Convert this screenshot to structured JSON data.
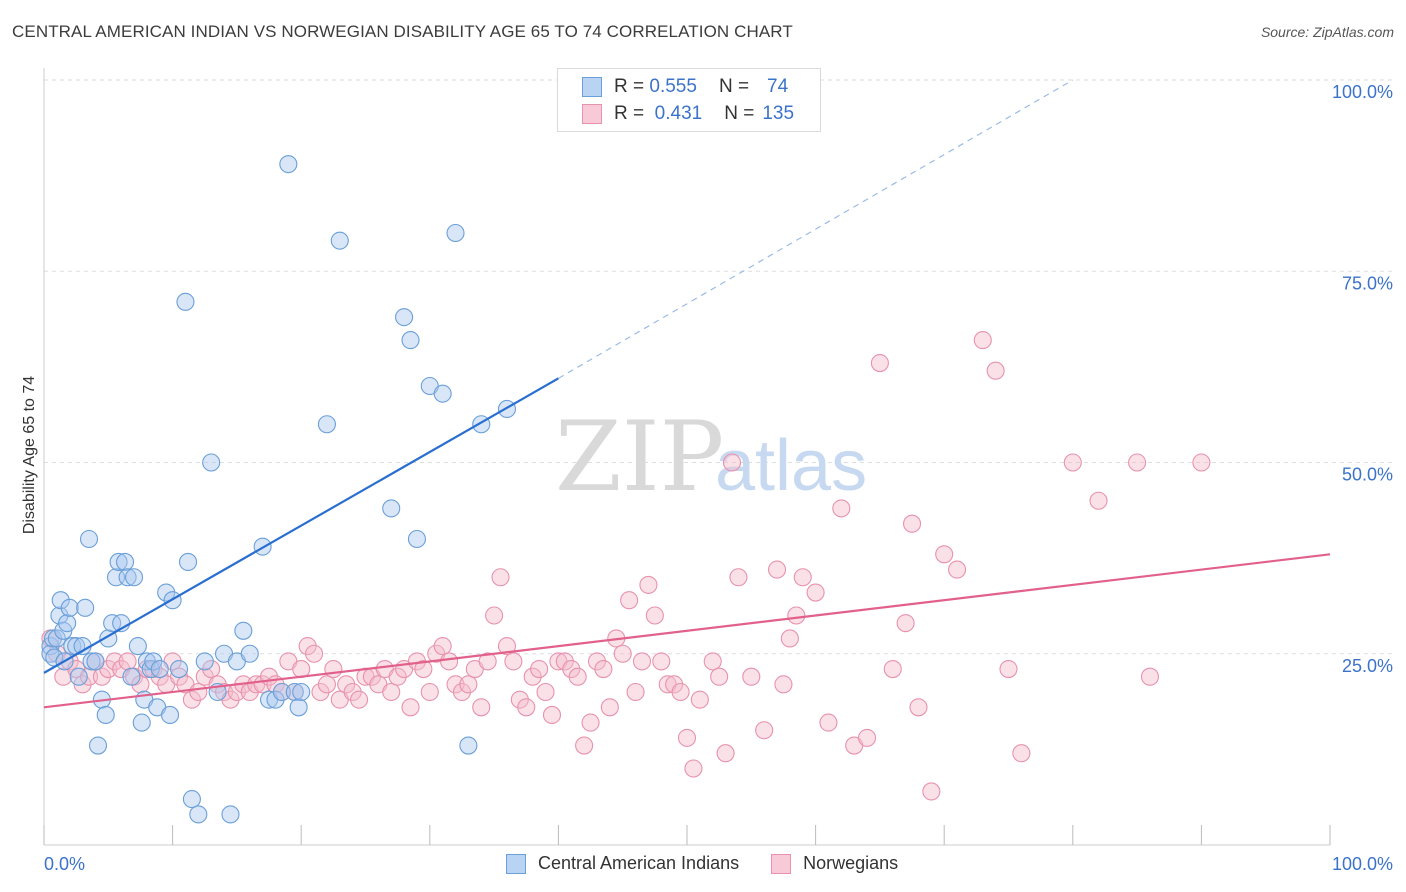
{
  "title": "CENTRAL AMERICAN INDIAN VS NORWEGIAN DISABILITY AGE 65 TO 74 CORRELATION CHART",
  "source": "Source: ZipAtlas.com",
  "watermark": {
    "zip": "ZIP",
    "atlas": "atlas"
  },
  "legend": {
    "rows": [
      {
        "r_label": "R =",
        "r_value": "0.555",
        "n_label": "N =",
        "n_value": "74"
      },
      {
        "r_label": "R =",
        "r_value": "0.431",
        "n_label": "N =",
        "n_value": "135"
      }
    ]
  },
  "bottom_legend": [
    "Central American Indians",
    "Norwegians"
  ],
  "colors": {
    "blue_fill": "#a9c8f0",
    "blue_stroke": "#6a9fd8",
    "blue_line": "#2a6fd0",
    "pink_fill": "#f5bccd",
    "pink_stroke": "#e892ad",
    "pink_line": "#e2608c",
    "axis_text": "#3b73c9",
    "grid": "#dddddd"
  },
  "chart_data": {
    "type": "scatter",
    "title": "CENTRAL AMERICAN INDIAN VS NORWEGIAN DISABILITY AGE 65 TO 74 CORRELATION CHART",
    "xlabel": "",
    "ylabel": "Disability Age 65 to 74",
    "xlim": [
      0,
      100
    ],
    "ylim": [
      0,
      100
    ],
    "x_ticks": [
      "0.0%",
      "100.0%"
    ],
    "y_ticks": [
      "25.0%",
      "50.0%",
      "75.0%",
      "100.0%"
    ],
    "grid": true,
    "legend_position": "top-center",
    "series": [
      {
        "name": "Central American Indians",
        "r": 0.555,
        "n": 74,
        "trend": {
          "x0": 0,
          "y0": 22.5,
          "x1": 40,
          "y1": 61,
          "dash_to_x": 80,
          "dash_to_y": 100
        },
        "points": [
          [
            0.5,
            26
          ],
          [
            0.5,
            25
          ],
          [
            0.7,
            27
          ],
          [
            0.8,
            24.5
          ],
          [
            1,
            27
          ],
          [
            1.2,
            30
          ],
          [
            1.3,
            32
          ],
          [
            1.5,
            28
          ],
          [
            1.6,
            24
          ],
          [
            1.8,
            29
          ],
          [
            2,
            31
          ],
          [
            2.2,
            26
          ],
          [
            2.5,
            26
          ],
          [
            2.7,
            22
          ],
          [
            3,
            26
          ],
          [
            3.2,
            31
          ],
          [
            3.5,
            40
          ],
          [
            3.7,
            24
          ],
          [
            4,
            24
          ],
          [
            4.2,
            13
          ],
          [
            4.5,
            19
          ],
          [
            4.8,
            17
          ],
          [
            5,
            27
          ],
          [
            5.3,
            29
          ],
          [
            5.6,
            35
          ],
          [
            5.8,
            37
          ],
          [
            6,
            29
          ],
          [
            6.3,
            37
          ],
          [
            6.5,
            35
          ],
          [
            6.8,
            22
          ],
          [
            7,
            35
          ],
          [
            7.3,
            26
          ],
          [
            7.6,
            16
          ],
          [
            7.8,
            19
          ],
          [
            8,
            24
          ],
          [
            8.3,
            23
          ],
          [
            8.5,
            24
          ],
          [
            8.8,
            18
          ],
          [
            9,
            23
          ],
          [
            9.5,
            33
          ],
          [
            9.8,
            17
          ],
          [
            10,
            32
          ],
          [
            10.5,
            23
          ],
          [
            11,
            71
          ],
          [
            11.2,
            37
          ],
          [
            11.5,
            6
          ],
          [
            12,
            4
          ],
          [
            12.5,
            24
          ],
          [
            13,
            50
          ],
          [
            13.5,
            20
          ],
          [
            14,
            25
          ],
          [
            14.5,
            4
          ],
          [
            15,
            24
          ],
          [
            15.5,
            28
          ],
          [
            16,
            25
          ],
          [
            17,
            39
          ],
          [
            17.5,
            19
          ],
          [
            18,
            19
          ],
          [
            18.5,
            20
          ],
          [
            19,
            89
          ],
          [
            19.5,
            20
          ],
          [
            19.8,
            18
          ],
          [
            20,
            20
          ],
          [
            22,
            55
          ],
          [
            23,
            79
          ],
          [
            27,
            44
          ],
          [
            28,
            69
          ],
          [
            28.5,
            66
          ],
          [
            29,
            40
          ],
          [
            30,
            60
          ],
          [
            31,
            59
          ],
          [
            32,
            80
          ],
          [
            33,
            13
          ],
          [
            34,
            55
          ],
          [
            36,
            57
          ]
        ]
      },
      {
        "name": "Norwegians",
        "r": 0.431,
        "n": 135,
        "trend": {
          "x0": 0,
          "y0": 18,
          "x1": 100,
          "y1": 38
        },
        "points": [
          [
            0.5,
            27
          ],
          [
            1,
            25
          ],
          [
            1.5,
            22
          ],
          [
            2,
            24
          ],
          [
            2.5,
            23
          ],
          [
            3,
            21
          ],
          [
            3.5,
            22
          ],
          [
            4,
            24
          ],
          [
            4.5,
            22
          ],
          [
            5,
            23
          ],
          [
            5.5,
            24
          ],
          [
            6,
            23
          ],
          [
            6.5,
            24
          ],
          [
            7,
            22
          ],
          [
            7.5,
            21
          ],
          [
            8,
            23
          ],
          [
            8.5,
            23
          ],
          [
            9,
            22
          ],
          [
            9.5,
            21
          ],
          [
            10,
            24
          ],
          [
            10.5,
            22
          ],
          [
            11,
            21
          ],
          [
            11.5,
            19
          ],
          [
            12,
            20
          ],
          [
            12.5,
            22
          ],
          [
            13,
            23
          ],
          [
            13.5,
            21
          ],
          [
            14,
            20
          ],
          [
            14.5,
            19
          ],
          [
            15,
            20
          ],
          [
            15.5,
            21
          ],
          [
            16,
            20
          ],
          [
            16.5,
            21
          ],
          [
            17,
            21
          ],
          [
            17.5,
            22
          ],
          [
            18,
            21
          ],
          [
            18.5,
            20
          ],
          [
            19,
            24
          ],
          [
            19.5,
            20
          ],
          [
            20,
            23
          ],
          [
            20.5,
            26
          ],
          [
            21,
            25
          ],
          [
            21.5,
            20
          ],
          [
            22,
            21
          ],
          [
            22.5,
            23
          ],
          [
            23,
            19
          ],
          [
            23.5,
            21
          ],
          [
            24,
            20
          ],
          [
            24.5,
            19
          ],
          [
            25,
            22
          ],
          [
            25.5,
            22
          ],
          [
            26,
            21
          ],
          [
            26.5,
            23
          ],
          [
            27,
            20
          ],
          [
            27.5,
            22
          ],
          [
            28,
            23
          ],
          [
            28.5,
            18
          ],
          [
            29,
            24
          ],
          [
            29.5,
            23
          ],
          [
            30,
            20
          ],
          [
            30.5,
            25
          ],
          [
            31,
            26
          ],
          [
            31.5,
            24
          ],
          [
            32,
            21
          ],
          [
            32.5,
            20
          ],
          [
            33,
            21
          ],
          [
            33.5,
            23
          ],
          [
            34,
            18
          ],
          [
            34.5,
            24
          ],
          [
            35,
            30
          ],
          [
            35.5,
            35
          ],
          [
            36,
            26
          ],
          [
            36.5,
            24
          ],
          [
            37,
            19
          ],
          [
            37.5,
            18
          ],
          [
            38,
            22
          ],
          [
            38.5,
            23
          ],
          [
            39,
            20
          ],
          [
            39.5,
            17
          ],
          [
            40,
            24
          ],
          [
            40.5,
            24
          ],
          [
            41,
            23
          ],
          [
            41.5,
            22
          ],
          [
            42,
            13
          ],
          [
            42.5,
            16
          ],
          [
            43,
            24
          ],
          [
            43.5,
            23
          ],
          [
            44,
            18
          ],
          [
            44.5,
            27
          ],
          [
            45,
            25
          ],
          [
            45.5,
            32
          ],
          [
            46,
            20
          ],
          [
            46.5,
            24
          ],
          [
            47,
            34
          ],
          [
            47.5,
            30
          ],
          [
            48,
            24
          ],
          [
            48.5,
            21
          ],
          [
            49,
            21
          ],
          [
            49.5,
            20
          ],
          [
            50,
            14
          ],
          [
            50.5,
            10
          ],
          [
            51,
            19
          ],
          [
            52,
            24
          ],
          [
            52.5,
            22
          ],
          [
            53,
            12
          ],
          [
            53.5,
            50
          ],
          [
            54,
            35
          ],
          [
            55,
            22
          ],
          [
            56,
            15
          ],
          [
            57,
            36
          ],
          [
            57.5,
            21
          ],
          [
            58,
            27
          ],
          [
            58.5,
            30
          ],
          [
            59,
            35
          ],
          [
            60,
            33
          ],
          [
            61,
            16
          ],
          [
            62,
            44
          ],
          [
            63,
            13
          ],
          [
            64,
            14
          ],
          [
            65,
            63
          ],
          [
            66,
            23
          ],
          [
            67,
            29
          ],
          [
            67.5,
            42
          ],
          [
            68,
            18
          ],
          [
            69,
            7
          ],
          [
            70,
            38
          ],
          [
            71,
            36
          ],
          [
            73,
            66
          ],
          [
            74,
            62
          ],
          [
            75,
            23
          ],
          [
            76,
            12
          ],
          [
            80,
            50
          ],
          [
            82,
            45
          ],
          [
            85,
            50
          ],
          [
            86,
            22
          ],
          [
            90,
            50
          ]
        ]
      }
    ]
  }
}
